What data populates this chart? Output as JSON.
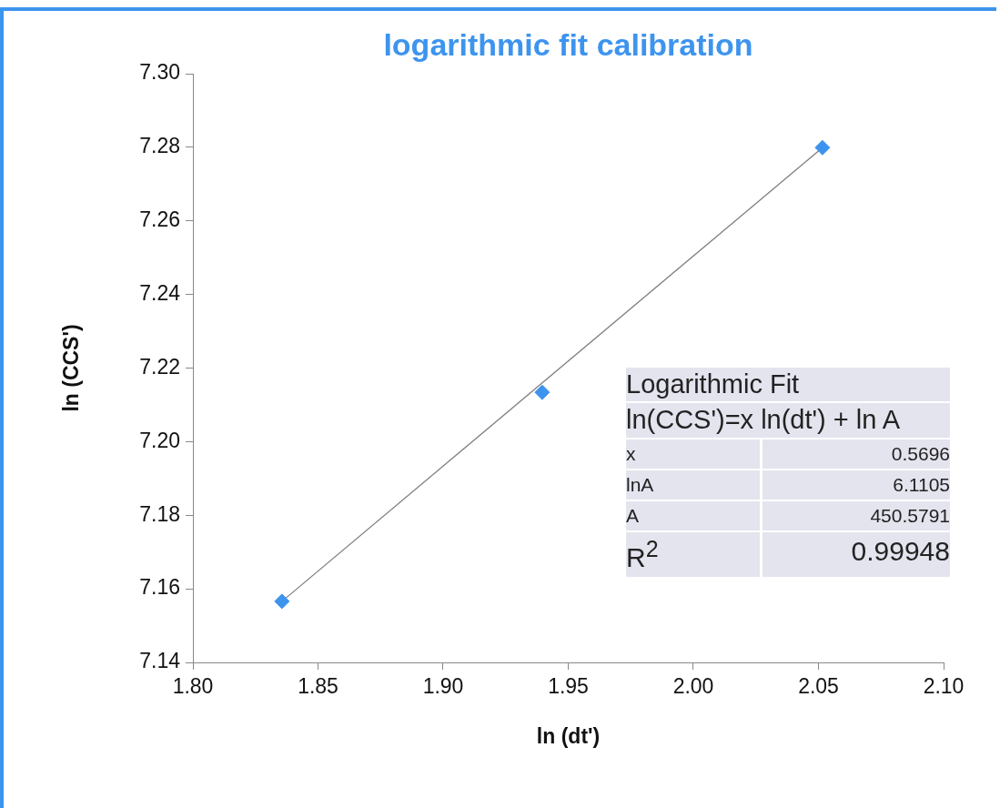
{
  "chart_data": {
    "type": "scatter",
    "title": "logarithmic fit calibration",
    "xlabel": "ln (dt')",
    "ylabel": "ln (CCS')",
    "series": [
      {
        "type": "scatter",
        "color": "#3d94ee",
        "x": [
          1.8356,
          1.9396,
          2.0516
        ],
        "values": [
          7.1566,
          7.2134,
          7.2799
        ],
        "marker": "diamond"
      },
      {
        "type": "line",
        "color": "#7f7f7f",
        "x": [
          1.8356,
          2.0516
        ],
        "values": [
          7.1566,
          7.2799
        ],
        "marker": "none"
      }
    ],
    "xlim": [
      1.8,
      2.1
    ],
    "xticks": [
      {
        "value": 1.8,
        "label": "1.80"
      },
      {
        "value": 1.85,
        "label": "1.85"
      },
      {
        "value": 1.9,
        "label": "1.90"
      },
      {
        "value": 1.95,
        "label": "1.95"
      },
      {
        "value": 2.0,
        "label": "2.00"
      },
      {
        "value": 2.05,
        "label": "2.05"
      },
      {
        "value": 2.1,
        "label": "2.10"
      }
    ],
    "ylim": [
      7.14,
      7.3
    ],
    "yticks": [
      7.14,
      7.16,
      {
        "value": 7.18,
        "label": "7.18"
      },
      {
        "value": 7.2,
        "label": "7.20"
      },
      7.22,
      7.24,
      7.26,
      7.28,
      {
        "value": 7.3,
        "label": "7.30"
      }
    ],
    "grid": false,
    "legend": false,
    "annotations": [
      "Logarithmic Fit",
      "ln(CCS')=x ln(dt') + ln A",
      "x",
      "0.5696",
      "lnA",
      "6.1105",
      "A",
      "450.5791",
      "R$^{2}$",
      "0.99948"
    ]
  }
}
